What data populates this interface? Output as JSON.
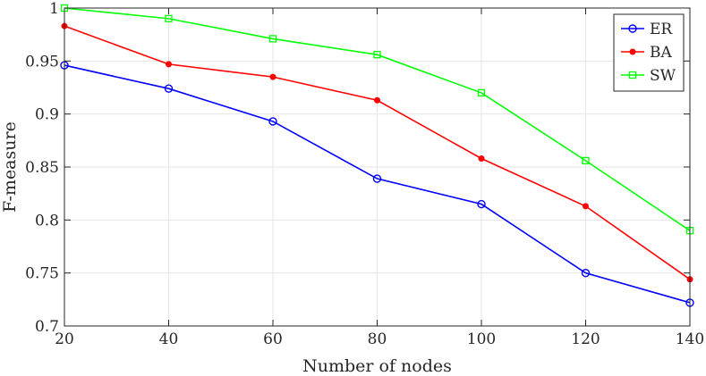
{
  "chart_data": {
    "type": "line",
    "xlabel": "Number of nodes",
    "ylabel": "F-measure",
    "xlim": [
      20,
      140
    ],
    "ylim": [
      0.7,
      1.0
    ],
    "xticks": [
      20,
      40,
      60,
      80,
      100,
      120,
      140
    ],
    "yticks": [
      0.7,
      0.75,
      0.8,
      0.85,
      0.9,
      0.95,
      1.0
    ],
    "xtick_labels": [
      "20",
      "40",
      "60",
      "80",
      "100",
      "120",
      "140"
    ],
    "ytick_labels": [
      "0.7",
      "0.75",
      "0.8",
      "0.85",
      "0.9",
      "0.95",
      "1"
    ],
    "grid": true,
    "legend_position": "top-right",
    "x": [
      20,
      40,
      60,
      80,
      100,
      120,
      140
    ],
    "series": [
      {
        "name": "ER",
        "color": "#0000ff",
        "marker": "circle",
        "values": [
          0.946,
          0.924,
          0.893,
          0.839,
          0.815,
          0.75,
          0.722
        ]
      },
      {
        "name": "BA",
        "color": "#ff0000",
        "marker": "filled-circle",
        "values": [
          0.983,
          0.947,
          0.935,
          0.913,
          0.858,
          0.813,
          0.744
        ]
      },
      {
        "name": "SW",
        "color": "#00ff00",
        "marker": "square",
        "values": [
          1.0,
          0.99,
          0.971,
          0.956,
          0.92,
          0.856,
          0.79
        ]
      }
    ]
  }
}
